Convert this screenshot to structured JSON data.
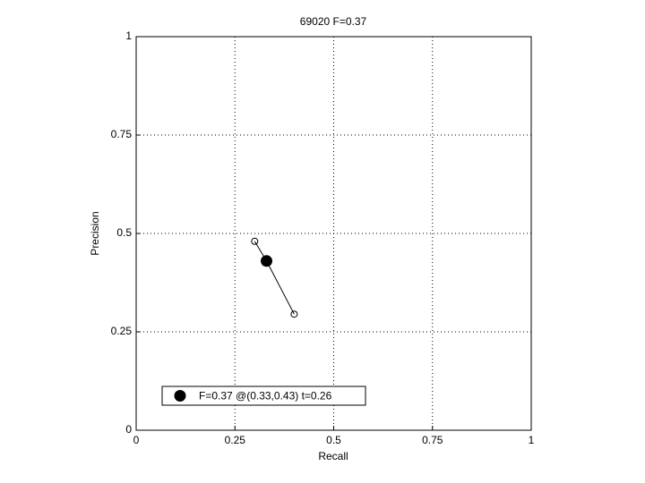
{
  "chart_data": {
    "type": "line",
    "title": "69020 F=0.37",
    "xlabel": "Recall",
    "ylabel": "Precision",
    "xlim": [
      0,
      1
    ],
    "ylim": [
      0,
      1
    ],
    "xticks": [
      0,
      0.25,
      0.5,
      0.75,
      1
    ],
    "yticks": [
      0,
      0.25,
      0.5,
      0.75,
      1
    ],
    "grid": true,
    "legend": "lower left",
    "series": [
      {
        "color": "#000000",
        "marker": "circle",
        "x": [
          0.3,
          0.33,
          0.4
        ],
        "values": [
          0.48,
          0.43,
          0.295
        ]
      },
      {
        "name": "F=0.37 @(0.33,0.43) t=0.26",
        "color": "#000000",
        "marker": "filled-circle",
        "x": [
          0.33
        ],
        "values": [
          0.43
        ]
      }
    ]
  }
}
